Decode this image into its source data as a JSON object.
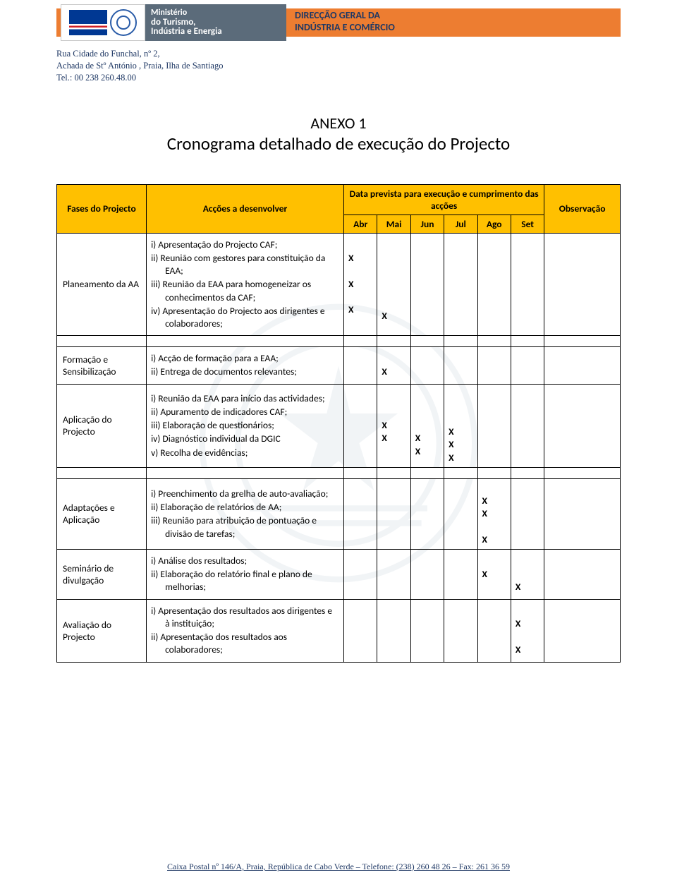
{
  "header": {
    "ministry_line1": "Ministério",
    "ministry_line2": "do Turismo,",
    "ministry_line3": "Indústria e Energia",
    "dept_line1": "DIRECÇÃO GERAL DA",
    "dept_line2": "INDÚSTRIA E COMÉRCIO",
    "strip_color": "#ed7d31",
    "ministry_bg": "#5b6b7a",
    "dept_color": "#1f3864"
  },
  "address": {
    "line1": "Rua Cidade do Funchal, nº 2,",
    "line2": "Achada de Stº António , Praia, Ilha de Santiago",
    "line3": "Tel.: 00 238 260.48.00"
  },
  "title": {
    "anexo": "ANEXO 1",
    "subtitle": "Cronograma detalhado de execução do Projecto"
  },
  "table": {
    "header_bg": "#ffc000",
    "col_phase": "Fases do Projecto",
    "col_actions": "Acções a desenvolver",
    "col_data_label": "Data prevista para execução e cumprimento das acções",
    "col_obs": "Observação",
    "months": [
      "Abr",
      "Mai",
      "Jun",
      "Jul",
      "Ago",
      "Set"
    ],
    "rows": [
      {
        "phase": "Planeamento da AA",
        "actions": [
          "i)  Apresentação do Projecto CAF;",
          "ii) Reunião com gestores para constituição da EAA;",
          "iii) Reunião da EAA para homogeneizar os conhecimentos da CAF;",
          "iv) Apresentação do Projecto aos dirigentes e colaboradores;"
        ],
        "marks": {
          "Abr": [
            "X",
            "",
            "X",
            "",
            "X"
          ],
          "Mai": [
            "",
            "",
            "",
            "",
            "",
            "X"
          ]
        }
      },
      {
        "phase": "Formação e Sensibilização",
        "actions": [
          "i)  Acção de formação para a EAA;",
          "ii) Entrega de documentos relevantes;"
        ],
        "marks": {
          "Mai": [
            "",
            "X"
          ]
        }
      },
      {
        "phase": "Aplicação do Projecto",
        "actions": [
          "i)  Reunião da EAA para início das actividades;",
          "ii) Apuramento de indicadores CAF;",
          "iii) Elaboração de questionários;",
          "iv) Diagnóstico individual da DGIC",
          "v) Recolha de evidências;"
        ],
        "marks": {
          "Mai": [
            "",
            "X",
            "X"
          ],
          "Jun": [
            "",
            "",
            "",
            "X",
            "X"
          ],
          "Jul": [
            "",
            "",
            "",
            "X",
            "X",
            "X"
          ]
        }
      },
      {
        "phase": "Adaptações e Aplicação",
        "actions": [
          "i)  Preenchimento da grelha de auto-avaliação;",
          "ii) Elaboração de relatórios de AA;",
          "iii) Reunião para atribuição de pontuação e divisão de tarefas;"
        ],
        "marks": {
          "Ago": [
            "",
            "X",
            "X",
            "",
            "X"
          ]
        }
      },
      {
        "phase": "Seminário de divulgação",
        "actions": [
          "i)  Análise dos resultados;",
          "ii) Elaboração do relatório final e plano de melhorias;"
        ],
        "marks": {
          "Ago": [
            "X"
          ],
          "Set": [
            "",
            "",
            "X"
          ]
        }
      },
      {
        "phase": "Avaliação do Projecto",
        "actions": [
          "i)  Apresentação dos resultados aos dirigentes e à instituição;",
          "ii) Apresentação dos resultados aos colaboradores;"
        ],
        "marks": {
          "Set": [
            "",
            "X",
            "",
            "X"
          ]
        }
      }
    ]
  },
  "footer": {
    "text": "Caixa Postal nº 146/A, Praia, República de Cabo Verde – Telefone: (238) 260 48 26 – Fax: 261 36 59"
  }
}
